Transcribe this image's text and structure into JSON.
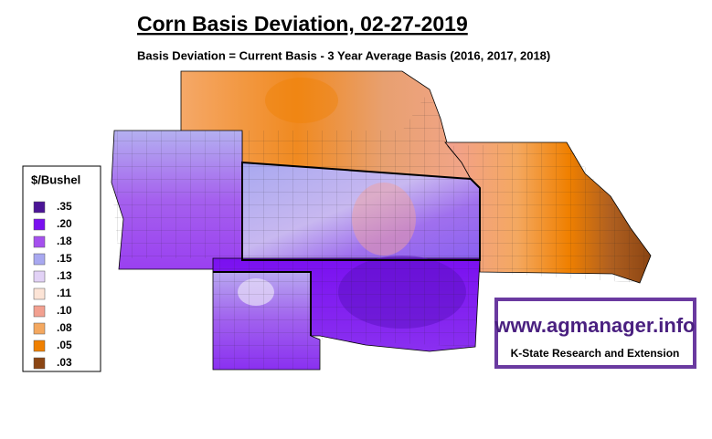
{
  "header": {
    "title": "Corn Basis Deviation, 02-27-2019",
    "subtitle": "Basis Deviation = Current Basis - 3 Year Average Basis (2016, 2017, 2018)"
  },
  "legend": {
    "title": "$/Bushel",
    "items": [
      {
        "label": ".35",
        "color": "#4b1496"
      },
      {
        "label": ".20",
        "color": "#7a10f0"
      },
      {
        "label": ".18",
        "color": "#a550ee"
      },
      {
        "label": ".15",
        "color": "#a8a8f0"
      },
      {
        "label": ".13",
        "color": "#e2d2f6"
      },
      {
        "label": ".11",
        "color": "#fce4d6"
      },
      {
        "label": ".10",
        "color": "#f2a090"
      },
      {
        "label": ".08",
        "color": "#f4a860"
      },
      {
        "label": ".05",
        "color": "#f08000"
      },
      {
        "label": ".03",
        "color": "#8b4513"
      }
    ]
  },
  "logo": {
    "url": "www.agmanager.info",
    "org": "K-State Research and Extension"
  }
}
